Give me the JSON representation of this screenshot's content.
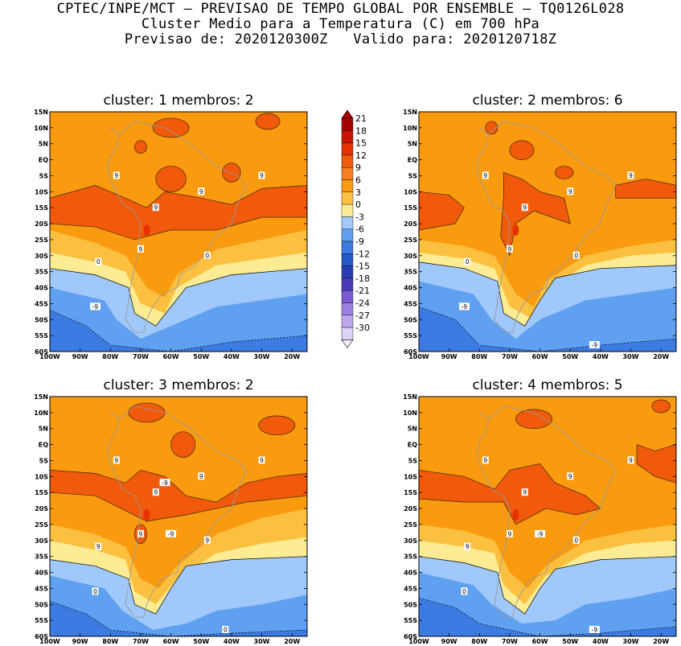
{
  "header": {
    "line1": "CPTEC/INPE/MCT — PREVISAO DE TEMPO GLOBAL POR ENSEMBLE — TQ0126L028",
    "line2": "Cluster Medio para a Temperatura (C) em 700 hPa",
    "line3": "Previsao de: 2020120300Z   Valido para: 2020120718Z"
  },
  "colorbar": {
    "levels": [
      "21",
      "18",
      "15",
      "12",
      "9",
      "6",
      "3",
      "0",
      "-3",
      "-6",
      "-9",
      "-12",
      "-15",
      "-18",
      "-21",
      "-24",
      "-27",
      "-30"
    ],
    "colors": [
      "#a80000",
      "#c81400",
      "#e63200",
      "#f05a0a",
      "#f77f1e",
      "#fa9b0f",
      "#fcc040",
      "#feec94",
      "#a0c8fa",
      "#5fa0f0",
      "#3c7be2",
      "#2458c8",
      "#2a3cb4",
      "#4a3cb8",
      "#7a5ad2",
      "#9b80e2",
      "#bca6ec",
      "#ddd2f6"
    ]
  },
  "chart_data": [
    {
      "type": "heatmap",
      "title": "cluster: 1   membros: 2",
      "cluster": "1",
      "members": "2",
      "x_ticks": [
        "100W",
        "90W",
        "80W",
        "70W",
        "60W",
        "50W",
        "40W",
        "30W",
        "20W"
      ],
      "y_ticks": [
        "15N",
        "10N",
        "5N",
        "EQ",
        "5S",
        "10S",
        "15S",
        "20S",
        "25S",
        "30S",
        "35S",
        "40S",
        "45S",
        "50S",
        "55S",
        "60S"
      ],
      "xlim": [
        "100W",
        "15W"
      ],
      "ylim": [
        "60S",
        "15N"
      ],
      "contour_labels": [
        "9",
        "9",
        "9",
        "9",
        "9",
        "0",
        "0",
        "-9"
      ]
    },
    {
      "type": "heatmap",
      "title": "cluster: 2   membros: 6",
      "cluster": "2",
      "members": "6",
      "x_ticks": [
        "100W",
        "90W",
        "80W",
        "70W",
        "60W",
        "50W",
        "40W",
        "30W",
        "20W"
      ],
      "y_ticks": [
        "15N",
        "10N",
        "5N",
        "EQ",
        "5S",
        "10S",
        "15S",
        "20S",
        "25S",
        "30S",
        "35S",
        "40S",
        "45S",
        "50S",
        "55S",
        "60S"
      ],
      "xlim": [
        "100W",
        "15W"
      ],
      "ylim": [
        "60S",
        "15N"
      ],
      "contour_labels": [
        "9",
        "9",
        "9",
        "9",
        "9",
        "0",
        "0",
        "-9",
        "-9"
      ]
    },
    {
      "type": "heatmap",
      "title": "cluster: 3   membros: 2",
      "cluster": "3",
      "members": "2",
      "x_ticks": [
        "100W",
        "90W",
        "80W",
        "70W",
        "60W",
        "50W",
        "40W",
        "30W",
        "20W"
      ],
      "y_ticks": [
        "15N",
        "10N",
        "5N",
        "EQ",
        "5S",
        "10S",
        "15S",
        "20S",
        "25S",
        "30S",
        "35S",
        "40S",
        "45S",
        "50S",
        "55S",
        "60S"
      ],
      "xlim": [
        "100W",
        "15W"
      ],
      "ylim": [
        "60S",
        "15N"
      ],
      "contour_labels": [
        "9",
        "9",
        "9",
        "9",
        "9",
        "9",
        "9",
        "0",
        "0",
        "-9",
        "-9"
      ]
    },
    {
      "type": "heatmap",
      "title": "cluster: 4   membros: 5",
      "cluster": "4",
      "members": "5",
      "x_ticks": [
        "100W",
        "90W",
        "80W",
        "70W",
        "60W",
        "50W",
        "40W",
        "30W",
        "20W"
      ],
      "y_ticks": [
        "15N",
        "10N",
        "5N",
        "EQ",
        "5S",
        "10S",
        "15S",
        "20S",
        "25S",
        "30S",
        "35S",
        "40S",
        "45S",
        "50S",
        "55S",
        "60S"
      ],
      "xlim": [
        "100W",
        "15W"
      ],
      "ylim": [
        "60S",
        "15N"
      ],
      "contour_labels": [
        "9",
        "9",
        "9",
        "9",
        "9",
        "9",
        "0",
        "0",
        "-9",
        "-9"
      ]
    }
  ]
}
